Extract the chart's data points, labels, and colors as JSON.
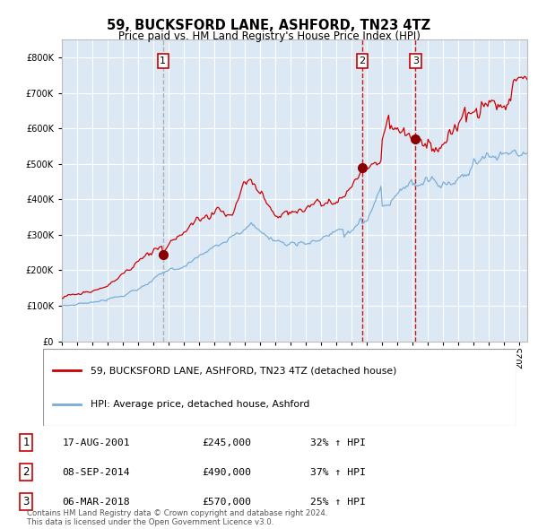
{
  "title": "59, BUCKSFORD LANE, ASHFORD, TN23 4TZ",
  "subtitle": "Price paid vs. HM Land Registry's House Price Index (HPI)",
  "plot_bg_color": "#dce9f5",
  "red_line_label": "59, BUCKSFORD LANE, ASHFORD, TN23 4TZ (detached house)",
  "blue_line_label": "HPI: Average price, detached house, Ashford",
  "transactions": [
    {
      "num": 1,
      "date": "17-AUG-2001",
      "x_year": 2001.63,
      "price": 245000,
      "pct": "32% ↑ HPI",
      "line_color": "#aaaaaa",
      "line_style": "dashed"
    },
    {
      "num": 2,
      "date": "08-SEP-2014",
      "x_year": 2014.69,
      "price": 490000,
      "pct": "37% ↑ HPI",
      "line_color": "#cc0000",
      "line_style": "dashed"
    },
    {
      "num": 3,
      "date": "06-MAR-2018",
      "x_year": 2018.18,
      "price": 570000,
      "pct": "25% ↑ HPI",
      "line_color": "#cc0000",
      "line_style": "dashed"
    }
  ],
  "footer": "Contains HM Land Registry data © Crown copyright and database right 2024.\nThis data is licensed under the Open Government Licence v3.0.",
  "ylim": [
    0,
    850000
  ],
  "xlim_start": 1995.0,
  "xlim_end": 2025.5
}
